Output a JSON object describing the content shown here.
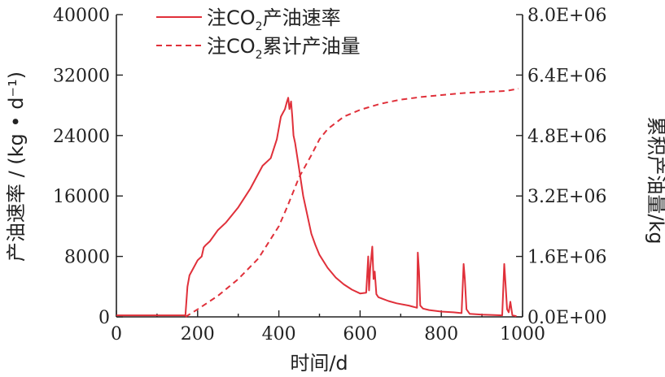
{
  "chart_data": {
    "type": "line",
    "xlabel": "时间/d",
    "ylabel_left": "产油速率 / (kg • d⁻¹)",
    "ylabel_right": "累积产油量/kg",
    "xlim": [
      0,
      1000
    ],
    "ylim_left": [
      0,
      40000
    ],
    "ylim_right": [
      0,
      8000000
    ],
    "x_ticks": [
      "0",
      "200",
      "400",
      "600",
      "800",
      "1000"
    ],
    "y_left_ticks": [
      "0",
      "8000",
      "16000",
      "24000",
      "32000",
      "40000"
    ],
    "y_right_ticks": [
      "0.0E+00",
      "1.6E+06",
      "3.2E+06",
      "4.8E+06",
      "6.4E+06",
      "8.0E+06"
    ],
    "grid": false,
    "legend_position": "top-center",
    "colors": {
      "series": "#e0303a",
      "axis": "#222222"
    },
    "legend": [
      {
        "prefix": "注CO",
        "sub": "2",
        "suffix": "产油速率",
        "style": "solid"
      },
      {
        "prefix": "注CO",
        "sub": "2",
        "suffix": "累计产油量",
        "style": "dashed"
      }
    ],
    "series": [
      {
        "axis": "left",
        "style": "solid",
        "x": [
          0,
          170,
          175,
          180,
          190,
          200,
          210,
          215,
          220,
          230,
          250,
          270,
          300,
          330,
          360,
          380,
          395,
          400,
          405,
          410,
          415,
          420,
          423,
          426,
          430,
          433,
          436,
          440,
          450,
          460,
          470,
          480,
          490,
          500,
          520,
          540,
          560,
          580,
          600,
          615,
          620,
          622,
          625,
          630,
          633,
          636,
          640,
          645,
          655,
          670,
          690,
          720,
          740,
          742,
          745,
          748,
          755,
          770,
          800,
          830,
          850,
          855,
          858,
          862,
          870,
          900,
          930,
          950,
          955,
          958,
          962,
          966,
          970,
          975,
          980,
          985
        ],
        "y": [
          200,
          200,
          4000,
          5500,
          6500,
          7500,
          8000,
          9200,
          9500,
          10000,
          11500,
          12500,
          14500,
          17000,
          20000,
          21000,
          23500,
          25000,
          26500,
          27000,
          27500,
          28500,
          29000,
          27500,
          28500,
          26500,
          24000,
          23000,
          19500,
          16000,
          13500,
          11000,
          9500,
          8200,
          6500,
          5200,
          4300,
          3600,
          3100,
          3200,
          8000,
          3500,
          6500,
          9300,
          5000,
          6000,
          3000,
          2600,
          2400,
          2100,
          1800,
          1500,
          1200,
          8500,
          6000,
          1500,
          1100,
          900,
          700,
          600,
          500,
          7000,
          5000,
          1000,
          400,
          300,
          250,
          200,
          7000,
          4500,
          1000,
          600,
          2000,
          200,
          150,
          100
        ]
      },
      {
        "axis": "right",
        "style": "dashed",
        "x": [
          170,
          200,
          250,
          300,
          350,
          400,
          420,
          450,
          480,
          500,
          520,
          560,
          600,
          650,
          700,
          750,
          800,
          850,
          900,
          960,
          980,
          990
        ],
        "y": [
          0,
          200000,
          560000,
          1000000,
          1550000,
          2400000,
          2900000,
          3700000,
          4280000,
          4700000,
          4970000,
          5300000,
          5480000,
          5640000,
          5750000,
          5820000,
          5870000,
          5920000,
          5950000,
          5980000,
          6020000,
          6040000
        ]
      }
    ]
  }
}
